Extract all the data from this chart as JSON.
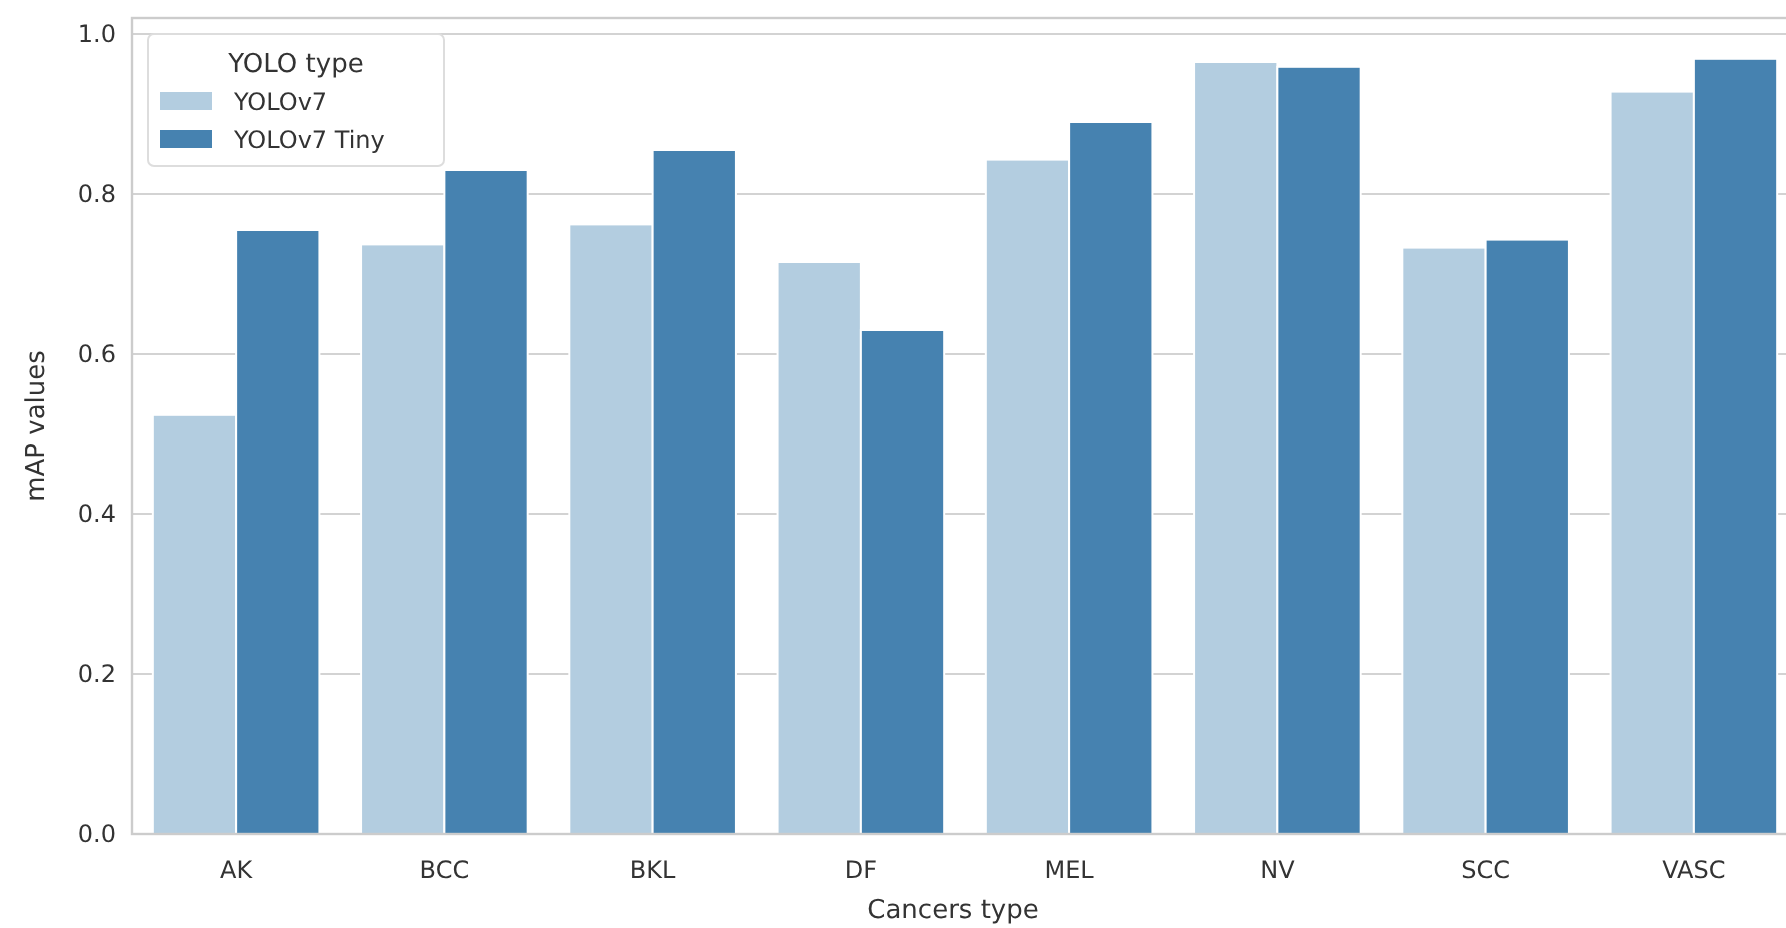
{
  "chart_data": {
    "type": "bar",
    "xlabel": "Cancers type",
    "ylabel": "mAP values",
    "legend_title": "YOLO type",
    "categories": [
      "AK",
      "BCC",
      "BKL",
      "DF",
      "MEL",
      "NV",
      "SCC",
      "VASC"
    ],
    "series": [
      {
        "name": "YOLOv7",
        "color": "#b3cde0",
        "values": [
          0.524,
          0.737,
          0.762,
          0.715,
          0.843,
          0.965,
          0.733,
          0.928
        ]
      },
      {
        "name": "YOLOv7 Tiny",
        "color": "#4682b0",
        "values": [
          0.755,
          0.83,
          0.855,
          0.63,
          0.89,
          0.959,
          0.743,
          0.969
        ]
      }
    ],
    "ylim": [
      0,
      1.02
    ],
    "yticks": [
      {
        "value": 0,
        "label": "0.0"
      },
      {
        "value": 0.2,
        "label": "0.2"
      },
      {
        "value": 0.4,
        "label": "0.4"
      },
      {
        "value": 0.6,
        "label": "0.6"
      },
      {
        "value": 0.8,
        "label": "0.8"
      },
      {
        "value": 1,
        "label": "1.0"
      }
    ],
    "grid": "y",
    "legend": "top left"
  }
}
